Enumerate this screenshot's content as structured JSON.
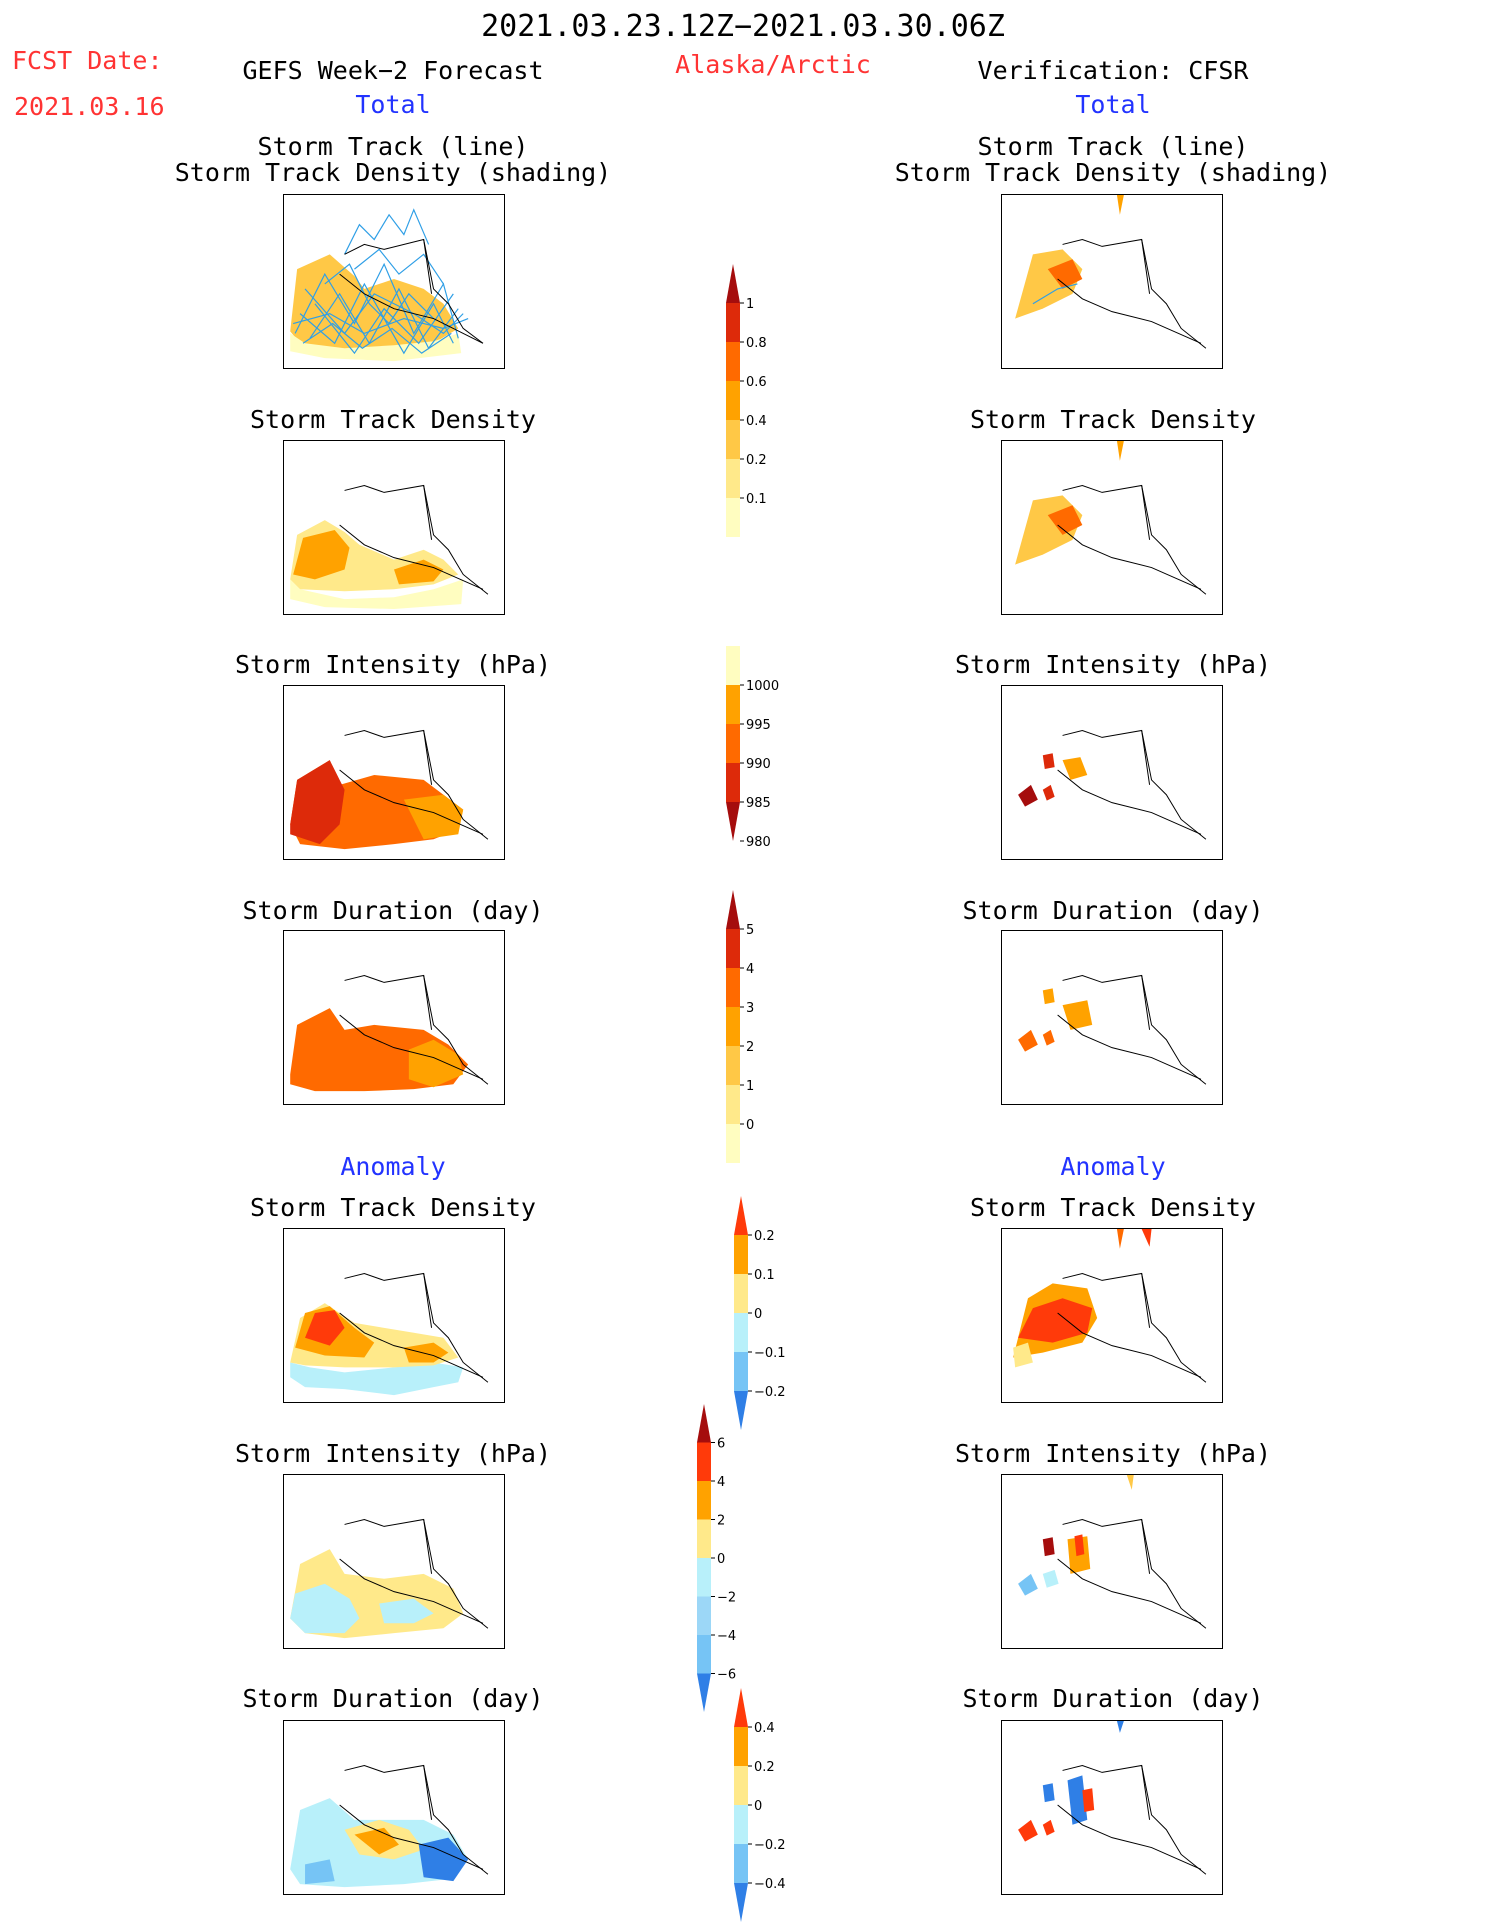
{
  "header": {
    "date_range": "2021.03.23.12Z−2021.03.30.06Z",
    "fcst_label": "FCST Date:",
    "fcst_date": "2021.03.16",
    "left_title": "GEFS Week−2 Forecast",
    "region": "Alaska/Arctic",
    "right_title": "Verification: CFSR"
  },
  "sections": {
    "total": "Total",
    "anomaly": "Anomaly"
  },
  "panel_titles": {
    "track_line": "Storm Track (line)",
    "track_shading": "Storm Track Density (shading)",
    "density": "Storm Track Density",
    "intensity": "Storm Intensity (hPa)",
    "duration": "Storm Duration (day)"
  },
  "colorbars": [
    {
      "id": "total-density",
      "labels": [
        "1",
        "0.8",
        "0.6",
        "0.4",
        "0.2",
        "0.1"
      ],
      "colors": [
        "#a50d0d",
        "#dd2a0a",
        "#ff6a00",
        "#ffa200",
        "#ffc846",
        "#ffe98a",
        "#fffdc0"
      ]
    },
    {
      "id": "total-intensity",
      "labels": [
        "1000",
        "995",
        "990",
        "985",
        "980"
      ],
      "colors": [
        "#fffdc0",
        "#ffa200",
        "#ff6a00",
        "#dd2a0a",
        "#a50d0d"
      ]
    },
    {
      "id": "total-duration",
      "labels": [
        "5",
        "4",
        "3",
        "2",
        "1",
        "0"
      ],
      "colors": [
        "#a50d0d",
        "#dd2a0a",
        "#ff6a00",
        "#ffa200",
        "#ffc846",
        "#ffe98a",
        "#fffdc0"
      ]
    },
    {
      "id": "anom-density",
      "labels": [
        "0.2",
        "0.1",
        "0",
        "−0.1",
        "−0.2"
      ],
      "colors": [
        "#ff3a0a",
        "#ffa200",
        "#ffe98a",
        "#b8f0fa",
        "#76c4f5",
        "#2f7fe6"
      ]
    },
    {
      "id": "anom-intensity",
      "labels": [
        "6",
        "4",
        "2",
        "0",
        "−2",
        "−4",
        "−6"
      ],
      "colors": [
        "#a50d0d",
        "#ff3a0a",
        "#ffa200",
        "#ffe98a",
        "#b8f0fa",
        "#9cd7f7",
        "#76c4f5",
        "#2f7fe6"
      ]
    },
    {
      "id": "anom-duration",
      "labels": [
        "0.4",
        "0.2",
        "0",
        "−0.2",
        "−0.4"
      ],
      "colors": [
        "#ff3a0a",
        "#ffa200",
        "#ffe98a",
        "#b8f0fa",
        "#76c4f5",
        "#2f7fe6"
      ]
    }
  ],
  "colors": {
    "track_line": "#2f9fe6",
    "header_red": "#ff3333",
    "section_blue": "#2233ff"
  }
}
